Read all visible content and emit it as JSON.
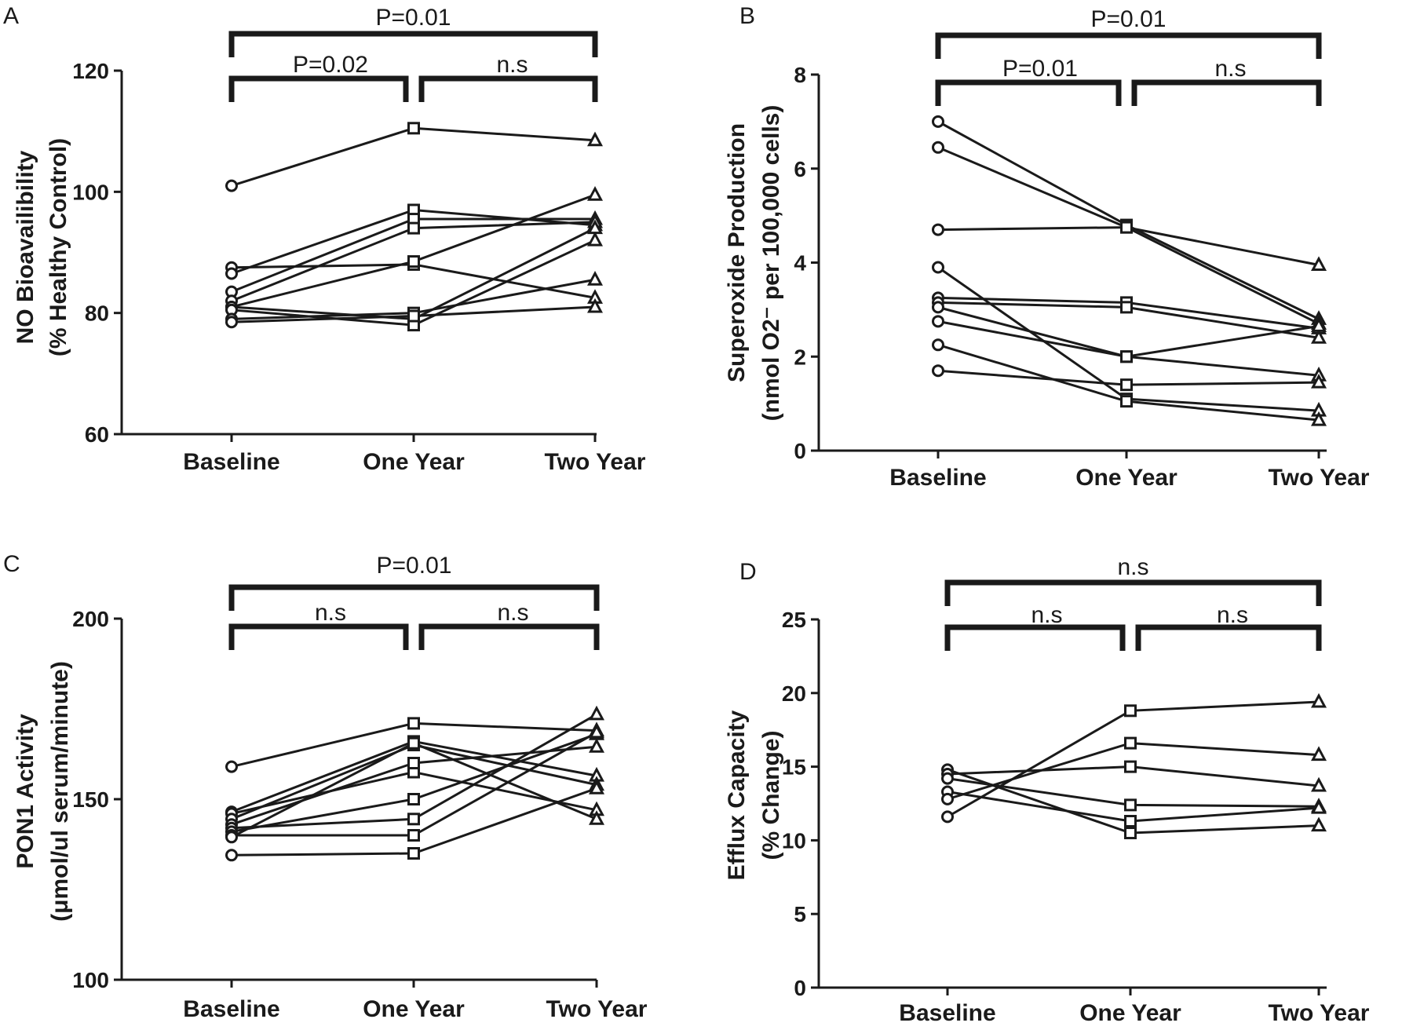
{
  "figure": {
    "panels": [
      {
        "letter": "A",
        "ylabel_line1": "NO Bioavailibility",
        "ylabel_line2": "(% Healthy Control)",
        "yticks": [
          "60",
          "80",
          "100",
          "120"
        ],
        "categories": [
          "Baseline",
          "One Year",
          "Two Year"
        ],
        "sig": {
          "outer": "P=0.01",
          "left": "P=0.02",
          "right": "n.s"
        }
      },
      {
        "letter": "B",
        "ylabel_line1": "Superoxide Production",
        "ylabel_line2": "(nmol O2⁻ per 100,000 cells)",
        "yticks": [
          "0",
          "2",
          "4",
          "6",
          "8"
        ],
        "categories": [
          "Baseline",
          "One Year",
          "Two Year"
        ],
        "sig": {
          "outer": "P=0.01",
          "left": "P=0.01",
          "right": "n.s"
        }
      },
      {
        "letter": "C",
        "ylabel_line1": "PON1 Activity",
        "ylabel_line2": "(μmol/ul serum/minute)",
        "yticks": [
          "100",
          "150",
          "200"
        ],
        "categories": [
          "Baseline",
          "One Year",
          "Two Year"
        ],
        "sig": {
          "outer": "P=0.01",
          "left": "n.s",
          "right": "n.s"
        }
      },
      {
        "letter": "D",
        "ylabel_line1": "Efflux Capacity",
        "ylabel_line2": "(% Change)",
        "yticks": [
          "0",
          "5",
          "10",
          "15",
          "20",
          "25"
        ],
        "categories": [
          "Baseline",
          "One Year",
          "Two Year"
        ],
        "sig": {
          "outer": "n.s",
          "left": "n.s",
          "right": "n.s"
        }
      }
    ]
  },
  "chart_data": [
    {
      "type": "line",
      "panel": "A",
      "categories": [
        "Baseline",
        "One Year",
        "Two Year"
      ],
      "ylim": [
        60,
        120
      ],
      "markers": [
        "circle",
        "square",
        "triangle"
      ],
      "line_color": "#1a1a1a",
      "series": [
        {
          "values": [
            101,
            110.5,
            108.5
          ]
        },
        {
          "values": [
            87.5,
            88,
            82.5
          ]
        },
        {
          "values": [
            86.5,
            97,
            94.5
          ]
        },
        {
          "values": [
            83.5,
            95.5,
            95.5
          ]
        },
        {
          "values": [
            82,
            94,
            95
          ]
        },
        {
          "values": [
            81,
            88.5,
            99.5
          ]
        },
        {
          "values": [
            81,
            79,
            94
          ]
        },
        {
          "values": [
            80.5,
            78,
            92
          ]
        },
        {
          "values": [
            79,
            80,
            85.5
          ]
        },
        {
          "values": [
            78.5,
            79.5,
            81
          ]
        }
      ]
    },
    {
      "type": "line",
      "panel": "B",
      "categories": [
        "Baseline",
        "One Year",
        "Two Year"
      ],
      "ylim": [
        0,
        8
      ],
      "markers": [
        "circle",
        "square",
        "triangle"
      ],
      "line_color": "#1a1a1a",
      "series": [
        {
          "values": [
            7.0,
            4.8,
            2.8
          ]
        },
        {
          "values": [
            6.45,
            4.75,
            2.7
          ]
        },
        {
          "values": [
            4.7,
            4.75,
            3.95
          ]
        },
        {
          "values": [
            3.9,
            1.1,
            0.85
          ]
        },
        {
          "values": [
            3.25,
            3.15,
            2.6
          ]
        },
        {
          "values": [
            3.15,
            3.05,
            2.4
          ]
        },
        {
          "values": [
            3.05,
            2.0,
            2.65
          ]
        },
        {
          "values": [
            2.75,
            2.0,
            1.6
          ]
        },
        {
          "values": [
            2.25,
            1.05,
            0.65
          ]
        },
        {
          "values": [
            1.7,
            1.4,
            1.45
          ]
        }
      ]
    },
    {
      "type": "line",
      "panel": "C",
      "categories": [
        "Baseline",
        "One Year",
        "Two Year"
      ],
      "ylim": [
        100,
        200
      ],
      "markers": [
        "circle",
        "square",
        "triangle"
      ],
      "line_color": "#1a1a1a",
      "series": [
        {
          "values": [
            159,
            171,
            169
          ]
        },
        {
          "values": [
            146.5,
            166,
            156.5
          ]
        },
        {
          "values": [
            146,
            157.5,
            147
          ]
        },
        {
          "values": [
            144.5,
            165,
            154
          ]
        },
        {
          "values": [
            143,
            160,
            164.5
          ]
        },
        {
          "values": [
            142,
            144.5,
            173.5
          ]
        },
        {
          "values": [
            141,
            150,
            168
          ]
        },
        {
          "values": [
            140,
            140,
            168.5
          ]
        },
        {
          "values": [
            139.5,
            165.5,
            144.5
          ]
        },
        {
          "values": [
            134.5,
            135,
            153
          ]
        }
      ]
    },
    {
      "type": "line",
      "panel": "D",
      "categories": [
        "Baseline",
        "One Year",
        "Two Year"
      ],
      "ylim": [
        0,
        25
      ],
      "markers": [
        "circle",
        "square",
        "triangle"
      ],
      "line_color": "#1a1a1a",
      "series": [
        {
          "values": [
            14.8,
            10.5,
            11.0
          ]
        },
        {
          "values": [
            14.5,
            15.0,
            13.7
          ]
        },
        {
          "values": [
            14.2,
            12.4,
            12.3
          ]
        },
        {
          "values": [
            13.3,
            11.3,
            12.2
          ]
        },
        {
          "values": [
            12.8,
            16.6,
            15.8
          ]
        },
        {
          "values": [
            11.6,
            18.8,
            19.4
          ]
        }
      ]
    }
  ]
}
